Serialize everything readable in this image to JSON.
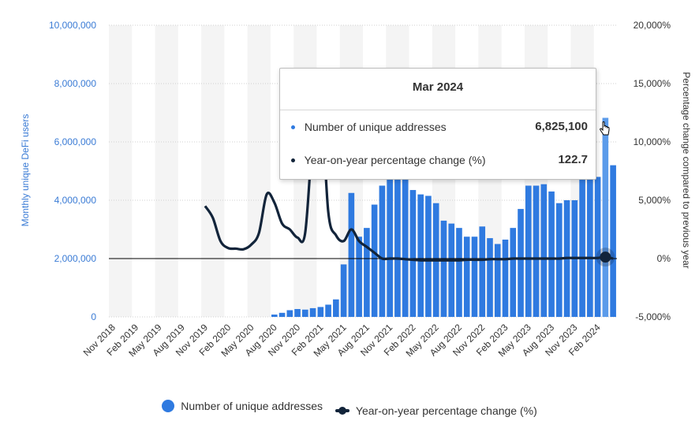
{
  "chart_data": {
    "type": "bar",
    "x": [
      "Nov 2018",
      "Dec 2018",
      "Jan 2019",
      "Feb 2019",
      "Mar 2019",
      "Apr 2019",
      "May 2019",
      "Jun 2019",
      "Jul 2019",
      "Aug 2019",
      "Sep 2019",
      "Oct 2019",
      "Nov 2019",
      "Dec 2019",
      "Jan 2020",
      "Feb 2020",
      "Mar 2020",
      "Apr 2020",
      "May 2020",
      "Jun 2020",
      "Jul 2020",
      "Aug 2020",
      "Sep 2020",
      "Oct 2020",
      "Nov 2020",
      "Dec 2020",
      "Jan 2021",
      "Feb 2021",
      "Mar 2021",
      "Apr 2021",
      "May 2021",
      "Jun 2021",
      "Jul 2021",
      "Aug 2021",
      "Sep 2021",
      "Oct 2021",
      "Nov 2021",
      "Dec 2021",
      "Jan 2022",
      "Feb 2022",
      "Mar 2022",
      "Apr 2022",
      "May 2022",
      "Jun 2022",
      "Jul 2022",
      "Aug 2022",
      "Sep 2022",
      "Oct 2022",
      "Nov 2022",
      "Dec 2022",
      "Jan 2023",
      "Feb 2023",
      "Mar 2023",
      "Apr 2023",
      "May 2023",
      "Jun 2023",
      "Jul 2023",
      "Aug 2023",
      "Sep 2023",
      "Oct 2023",
      "Nov 2023",
      "Dec 2023",
      "Jan 2024",
      "Feb 2024",
      "Mar 2024",
      "Apr 2024"
    ],
    "x_tick_labels": [
      "Nov 2018",
      "Feb 2019",
      "May 2019",
      "Aug 2019",
      "Nov 2019",
      "Feb 2020",
      "May 2020",
      "Aug 2020",
      "Nov 2020",
      "Feb 2021",
      "May 2021",
      "Aug 2021",
      "Nov 2021",
      "Feb 2022",
      "May 2022",
      "Aug 2022",
      "Nov 2022",
      "Feb 2023",
      "May 2023",
      "Aug 2023",
      "Nov 2023",
      "Feb 2024"
    ],
    "series": [
      {
        "name": "Number of unique addresses",
        "type": "bar",
        "axis": "left",
        "color": "#2f7ae0",
        "values": [
          0,
          0,
          0,
          0,
          0,
          0,
          0,
          0,
          0,
          0,
          0,
          0,
          0,
          0,
          0,
          0,
          0,
          0,
          0,
          0,
          0,
          80000,
          140000,
          230000,
          270000,
          250000,
          300000,
          340000,
          420000,
          600000,
          1800000,
          4250000,
          2750000,
          3050000,
          3850000,
          4500000,
          4800000,
          5050000,
          4900000,
          4350000,
          4200000,
          4150000,
          3900000,
          3300000,
          3200000,
          3050000,
          2750000,
          2750000,
          3100000,
          2700000,
          2500000,
          2650000,
          3050000,
          3700000,
          4500000,
          4500000,
          4550000,
          4300000,
          3900000,
          4000000,
          4000000,
          4800000,
          5800000,
          4800000,
          6825100,
          5200000
        ],
        "highlight_index": 64,
        "highlight_color": "#5b9bea"
      },
      {
        "name": "Year-on-year percentage change (%)",
        "type": "line",
        "axis": "right",
        "color": "#12243a",
        "values": [
          null,
          null,
          null,
          null,
          null,
          null,
          null,
          null,
          null,
          null,
          null,
          null,
          4500,
          3500,
          1500,
          900,
          850,
          800,
          1200,
          2200,
          5500,
          4800,
          3000,
          2500,
          1800,
          2200,
          10500,
          14000,
          4000,
          2000,
          1500,
          2500,
          1500,
          1000,
          500,
          0,
          0,
          0,
          -50,
          -100,
          -150,
          -150,
          -150,
          -150,
          -150,
          -150,
          -100,
          -100,
          -100,
          -50,
          -50,
          -50,
          0,
          0,
          0,
          0,
          0,
          0,
          0,
          50,
          50,
          50,
          50,
          50,
          122.7,
          0
        ],
        "x_offset": 12
      }
    ],
    "yleft": {
      "label": "Monthly unique DeFi users",
      "ticks": [
        "0",
        "2,000,000",
        "4,000,000",
        "6,000,000",
        "8,000,000",
        "10,000,000"
      ],
      "min": 0,
      "max": 10000000
    },
    "yright": {
      "label": "Percentage change compared to previous year",
      "ticks": [
        "-5,000%",
        "0%",
        "5,000%",
        "10,000%",
        "15,000%",
        "20,000%"
      ],
      "min": -5000,
      "max": 20000
    },
    "grid": true,
    "legend_position": "bottom"
  },
  "tooltip": {
    "title": "Mar 2024",
    "rows": [
      {
        "label": "Number of unique addresses",
        "value": "6,825,100",
        "dot_color": "#2f7ae0"
      },
      {
        "label": "Year-on-year percentage change (%)",
        "value": "122.7",
        "dot_color": "#12243a"
      }
    ]
  },
  "legend": {
    "items": [
      {
        "label": "Number of unique addresses"
      },
      {
        "label": "Year-on-year percentage change (%)"
      }
    ]
  }
}
